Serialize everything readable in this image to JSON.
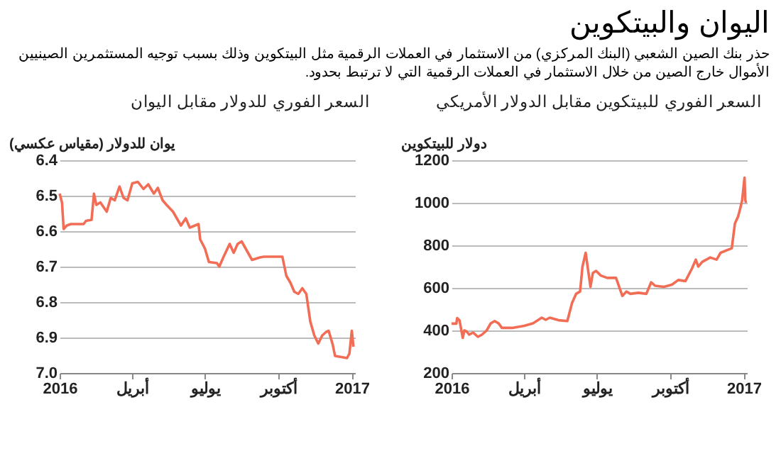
{
  "chart_data": [
    {
      "type": "other",
      "title": "اليوان والبيتكوين",
      "subtitle": "حذر بنك الصين الشعبي (البنك المركزي) من الاستثمار في العملات الرقمية مثل البيتكوين وذلك بسبب توجيه المستثمرين الصينيين الأموال خارج الصين من خلال الاستثمار في العملات الرقمية التي لا ترتبط بحدود."
    },
    {
      "type": "line",
      "title": "السعر الفوري للبيتكوين مقابل الدولار الأمريكي",
      "ylabel": "دولار للبيتكوين",
      "x": [
        "2016-01-01",
        "2016-01-07",
        "2016-01-08",
        "2016-01-11",
        "2016-01-15",
        "2016-01-17",
        "2016-01-20",
        "2016-01-23",
        "2016-01-28",
        "2016-02-03",
        "2016-02-08",
        "2016-02-14",
        "2016-02-19",
        "2016-02-24",
        "2016-02-29",
        "2016-03-04",
        "2016-03-17",
        "2016-04-01",
        "2016-04-12",
        "2016-04-23",
        "2016-04-28",
        "2016-05-03",
        "2016-05-14",
        "2016-05-25",
        "2016-05-31",
        "2016-06-05",
        "2016-06-10",
        "2016-06-13",
        "2016-06-17",
        "2016-06-21",
        "2016-06-23",
        "2016-06-26",
        "2016-06-30",
        "2016-07-06",
        "2016-07-14",
        "2016-07-25",
        "2016-08-02",
        "2016-08-07",
        "2016-08-12",
        "2016-08-22",
        "2016-09-01",
        "2016-09-07",
        "2016-09-12",
        "2016-09-23",
        "2016-10-03",
        "2016-10-11",
        "2016-10-20",
        "2016-10-28",
        "2016-11-02",
        "2016-11-05",
        "2016-11-10",
        "2016-11-20",
        "2016-11-28",
        "2016-12-03",
        "2016-12-17",
        "2016-12-21",
        "2016-12-25",
        "2016-12-28",
        "2016-12-30",
        "2017-01-02",
        "2017-01-03",
        "2017-01-04"
      ],
      "series": [
        {
          "color": "#f26d55",
          "values": [
            432,
            432,
            458,
            447,
            365,
            400,
            395,
            380,
            390,
            370,
            380,
            400,
            433,
            444,
            433,
            412,
            412,
            422,
            433,
            460,
            450,
            460,
            448,
            444,
            530,
            572,
            583,
            700,
            765,
            658,
            605,
            670,
            680,
            658,
            647,
            647,
            562,
            583,
            572,
            577,
            572,
            626,
            610,
            605,
            615,
            637,
            632,
            690,
            733,
            700,
            722,
            743,
            733,
            765,
            786,
            903,
            936,
            979,
            1011,
            1118,
            1011,
            1000
          ]
        }
      ],
      "xlim": [
        "2016-01-01",
        "2017-01-05"
      ],
      "xticks": [
        {
          "value": "2016-01-01",
          "label": "2016"
        },
        {
          "value": "2016-04-01",
          "label": "أبريل"
        },
        {
          "value": "2016-07-01",
          "label": "يوليو"
        },
        {
          "value": "2016-10-01",
          "label": "أكتوبر"
        },
        {
          "value": "2017-01-01",
          "label": "2017"
        }
      ],
      "ylim": [
        200,
        1200
      ],
      "yticks": [
        200,
        400,
        600,
        800,
        1000,
        1200
      ],
      "grid": "y",
      "marker": "none",
      "line_style": "solid"
    },
    {
      "type": "line",
      "title": "السعر الفوري للدولار مقابل اليوان",
      "ylabel": "يوان للدولار (مقياس عكسي)",
      "x": [
        "2016-01-01",
        "2016-01-04",
        "2016-01-06",
        "2016-01-10",
        "2016-01-15",
        "2016-01-31",
        "2016-02-03",
        "2016-02-10",
        "2016-02-13",
        "2016-02-16",
        "2016-02-21",
        "2016-02-29",
        "2016-03-05",
        "2016-03-10",
        "2016-03-16",
        "2016-03-21",
        "2016-03-26",
        "2016-04-01",
        "2016-04-08",
        "2016-04-15",
        "2016-04-21",
        "2016-04-28",
        "2016-05-03",
        "2016-05-09",
        "2016-05-14",
        "2016-05-22",
        "2016-06-01",
        "2016-06-07",
        "2016-06-12",
        "2016-06-23",
        "2016-06-25",
        "2016-07-01",
        "2016-07-06",
        "2016-07-16",
        "2016-07-19",
        "2016-07-24",
        "2016-08-01",
        "2016-08-06",
        "2016-08-11",
        "2016-08-16",
        "2016-08-24",
        "2016-08-29",
        "2016-09-08",
        "2016-09-13",
        "2016-10-06",
        "2016-10-11",
        "2016-10-16",
        "2016-10-21",
        "2016-10-26",
        "2016-10-31",
        "2016-11-05",
        "2016-11-10",
        "2016-11-15",
        "2016-11-20",
        "2016-11-25",
        "2016-11-30",
        "2016-12-03",
        "2016-12-08",
        "2016-12-11",
        "2016-12-19",
        "2016-12-26",
        "2016-12-29",
        "2017-01-01",
        "2017-01-03"
      ],
      "series": [
        {
          "color": "#f26d55",
          "values": [
            6.494,
            6.52,
            6.594,
            6.584,
            6.58,
            6.58,
            6.571,
            6.568,
            6.494,
            6.526,
            6.519,
            6.545,
            6.506,
            6.513,
            6.474,
            6.506,
            6.513,
            6.465,
            6.461,
            6.481,
            6.468,
            6.494,
            6.478,
            6.513,
            6.526,
            6.545,
            6.584,
            6.564,
            6.59,
            6.58,
            6.623,
            6.649,
            6.687,
            6.69,
            6.7,
            6.674,
            6.636,
            6.661,
            6.636,
            6.629,
            6.661,
            6.681,
            6.674,
            6.672,
            6.672,
            6.726,
            6.745,
            6.771,
            6.777,
            6.761,
            6.777,
            6.855,
            6.894,
            6.917,
            6.894,
            6.884,
            6.881,
            6.919,
            6.952,
            6.955,
            6.958,
            6.945,
            6.881,
            6.926
          ]
        }
      ],
      "xlim": [
        "2016-01-01",
        "2017-01-05"
      ],
      "xticks": [
        {
          "value": "2016-01-01",
          "label": "2016"
        },
        {
          "value": "2016-04-01",
          "label": "أبريل"
        },
        {
          "value": "2016-07-01",
          "label": "يوليو"
        },
        {
          "value": "2016-10-01",
          "label": "أكتوبر"
        },
        {
          "value": "2017-01-01",
          "label": "2017"
        }
      ],
      "ylim": [
        7.0,
        6.4
      ],
      "yticks": [
        {
          "value": 7.0,
          "label": "7.0"
        },
        6.9,
        6.8,
        6.7,
        6.6,
        6.5,
        6.4
      ],
      "grid": "y",
      "marker": "none",
      "line_style": "solid"
    }
  ]
}
